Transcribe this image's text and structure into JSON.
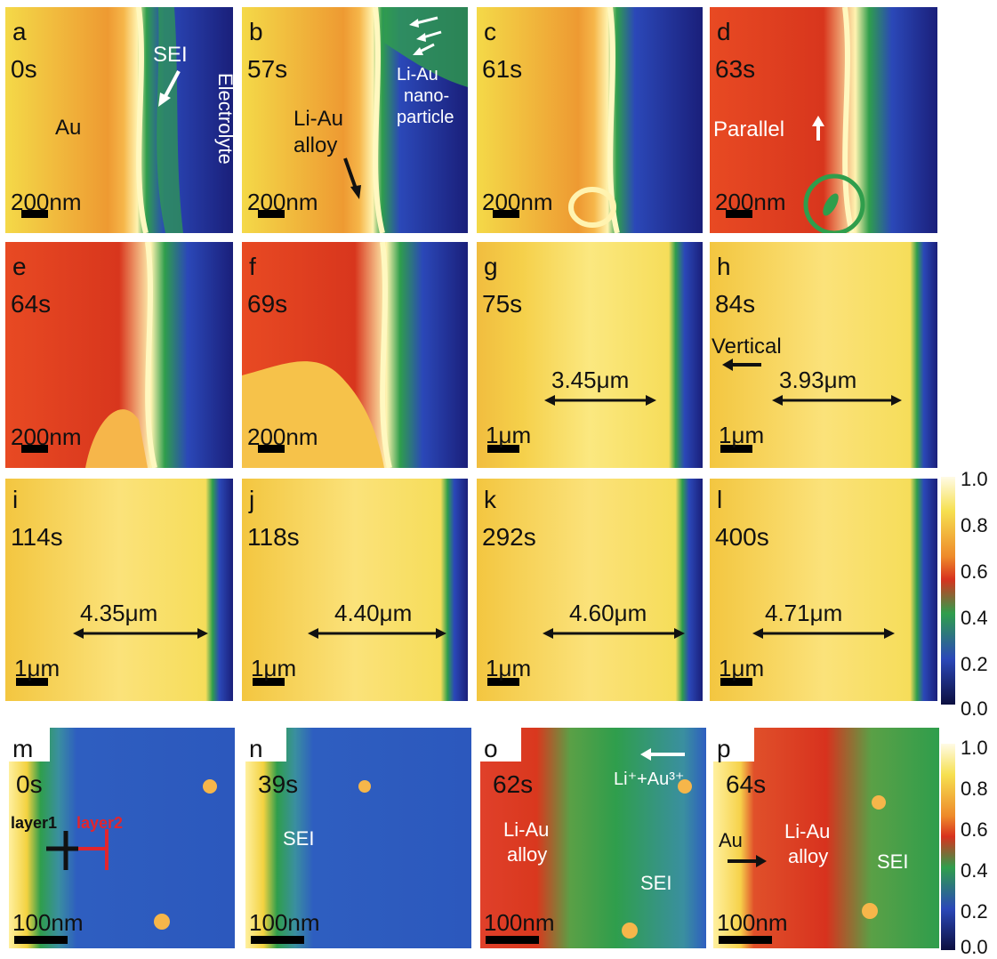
{
  "panels": {
    "a": {
      "label": "a",
      "time": "0s",
      "scale": "200nm",
      "notes": {
        "sei": "SEI",
        "au": "Au",
        "electrolyte": "Electrolyte"
      }
    },
    "b": {
      "label": "b",
      "time": "57s",
      "scale": "200nm",
      "notes": {
        "alloy_1": "Li-Au",
        "alloy_2": "alloy",
        "np_1": "Li-Au",
        "np_2": "nano-",
        "np_3": "particle"
      }
    },
    "c": {
      "label": "c",
      "time": "61s",
      "scale": "200nm"
    },
    "d": {
      "label": "d",
      "time": "63s",
      "scale": "200nm",
      "notes": {
        "parallel": "Parallel"
      }
    },
    "e": {
      "label": "e",
      "time": "64s",
      "scale": "200nm"
    },
    "f": {
      "label": "f",
      "time": "69s",
      "scale": "200nm"
    },
    "g": {
      "label": "g",
      "time": "75s",
      "scale": "1μm",
      "measure": "3.45μm"
    },
    "h": {
      "label": "h",
      "time": "84s",
      "scale": "1μm",
      "measure": "3.93μm",
      "notes": {
        "vertical": "Vertical"
      }
    },
    "i": {
      "label": "i",
      "time": "114s",
      "scale": "1μm",
      "measure": "4.35μm"
    },
    "j": {
      "label": "j",
      "time": "118s",
      "scale": "1μm",
      "measure": "4.40μm"
    },
    "k": {
      "label": "k",
      "time": "292s",
      "scale": "1μm",
      "measure": "4.60μm"
    },
    "l": {
      "label": "l",
      "time": "400s",
      "scale": "1μm",
      "measure": "4.71μm"
    },
    "m": {
      "label": "m",
      "time": "0s",
      "scale": "100nm",
      "notes": {
        "layer1": "layer1",
        "layer2": "layer2"
      }
    },
    "n": {
      "label": "n",
      "time": "39s",
      "scale": "100nm",
      "notes": {
        "sei": "SEI"
      }
    },
    "o": {
      "label": "o",
      "time": "62s",
      "scale": "100nm",
      "notes": {
        "ions": "Li⁺+Au³⁺",
        "alloy_1": "Li-Au",
        "alloy_2": "alloy",
        "sei": "SEI"
      }
    },
    "p": {
      "label": "p",
      "time": "64s",
      "scale": "100nm",
      "notes": {
        "au": "Au",
        "alloy_1": "Li-Au",
        "alloy_2": "alloy",
        "sei": "SEI"
      }
    }
  },
  "colorbar_ticks": [
    "1.0",
    "0.8",
    "0.6",
    "0.4",
    "0.2",
    "0.0"
  ],
  "colors": {
    "yellow": "#f2dc4a",
    "orange": "#ef8a2e",
    "red": "#d8321e",
    "green": "#2fa24a",
    "blue": "#2f3fb0",
    "navy": "#14186a",
    "white": "#fffbe0"
  }
}
